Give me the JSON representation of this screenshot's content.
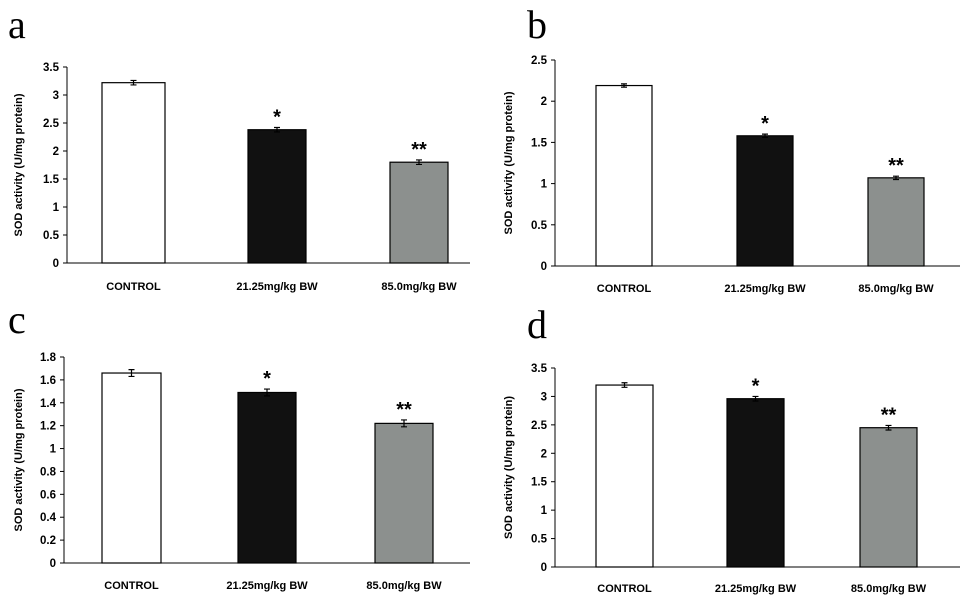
{
  "chart_data": [
    {
      "type": "bar",
      "panel": "a",
      "categories": [
        "CONTROL",
        "21.25mg/kg BW",
        "85.0mg/kg BW"
      ],
      "values": [
        3.22,
        2.38,
        1.8
      ],
      "errors": [
        0.04,
        0.04,
        0.04
      ],
      "significance": [
        "",
        "*",
        "**"
      ],
      "colors": [
        "#ffffff",
        "#111111",
        "#8c908e"
      ],
      "ylabel": "SOD activity (U/mg protein)",
      "ylim": [
        0,
        3.5
      ],
      "yticks": [
        "0",
        "0.5",
        "1",
        "1.5",
        "2",
        "2.5",
        "3",
        "3.5"
      ],
      "ytick_values": [
        0,
        0.5,
        1,
        1.5,
        2,
        2.5,
        3,
        3.5
      ]
    },
    {
      "type": "bar",
      "panel": "b",
      "categories": [
        "CONTROL",
        "21.25mg/kg BW",
        "85.0mg/kg BW"
      ],
      "values": [
        2.19,
        1.58,
        1.07
      ],
      "errors": [
        0.02,
        0.02,
        0.02
      ],
      "significance": [
        "",
        "*",
        "**"
      ],
      "colors": [
        "#ffffff",
        "#111111",
        "#8c908e"
      ],
      "ylabel": "SOD activity (U/mg protein)",
      "ylim": [
        0,
        2.5
      ],
      "yticks": [
        "0",
        "0.5",
        "1",
        "1.5",
        "2",
        "2.5"
      ],
      "ytick_values": [
        0,
        0.5,
        1,
        1.5,
        2,
        2.5
      ]
    },
    {
      "type": "bar",
      "panel": "c",
      "categories": [
        "CONTROL",
        "21.25mg/kg BW",
        "85.0mg/kg BW"
      ],
      "values": [
        1.66,
        1.49,
        1.22
      ],
      "errors": [
        0.03,
        0.03,
        0.03
      ],
      "significance": [
        "",
        "*",
        "**"
      ],
      "colors": [
        "#ffffff",
        "#111111",
        "#8c908e"
      ],
      "ylabel": "SOD activity (U/mg protein)",
      "ylim": [
        0,
        1.8
      ],
      "yticks": [
        "0",
        "0.2",
        "0.4",
        "0.6",
        "0.8",
        "1",
        "1.2",
        "1.4",
        "1.6",
        "1.8"
      ],
      "ytick_values": [
        0,
        0.2,
        0.4,
        0.6,
        0.8,
        1,
        1.2,
        1.4,
        1.6,
        1.8
      ]
    },
    {
      "type": "bar",
      "panel": "d",
      "categories": [
        "CONTROL",
        "21.25mg/kg BW",
        "85.0mg/kg BW"
      ],
      "values": [
        3.2,
        2.96,
        2.45
      ],
      "errors": [
        0.04,
        0.04,
        0.04
      ],
      "significance": [
        "",
        "*",
        "**"
      ],
      "colors": [
        "#ffffff",
        "#111111",
        "#8c908e"
      ],
      "ylabel": "SOD activity (U/mg protein)",
      "ylim": [
        0,
        3.5
      ],
      "yticks": [
        "0",
        "0.5",
        "1",
        "1.5",
        "2",
        "2.5",
        "3",
        "3.5"
      ],
      "ytick_values": [
        0,
        0.5,
        1,
        1.5,
        2,
        2.5,
        3,
        3.5
      ]
    }
  ]
}
